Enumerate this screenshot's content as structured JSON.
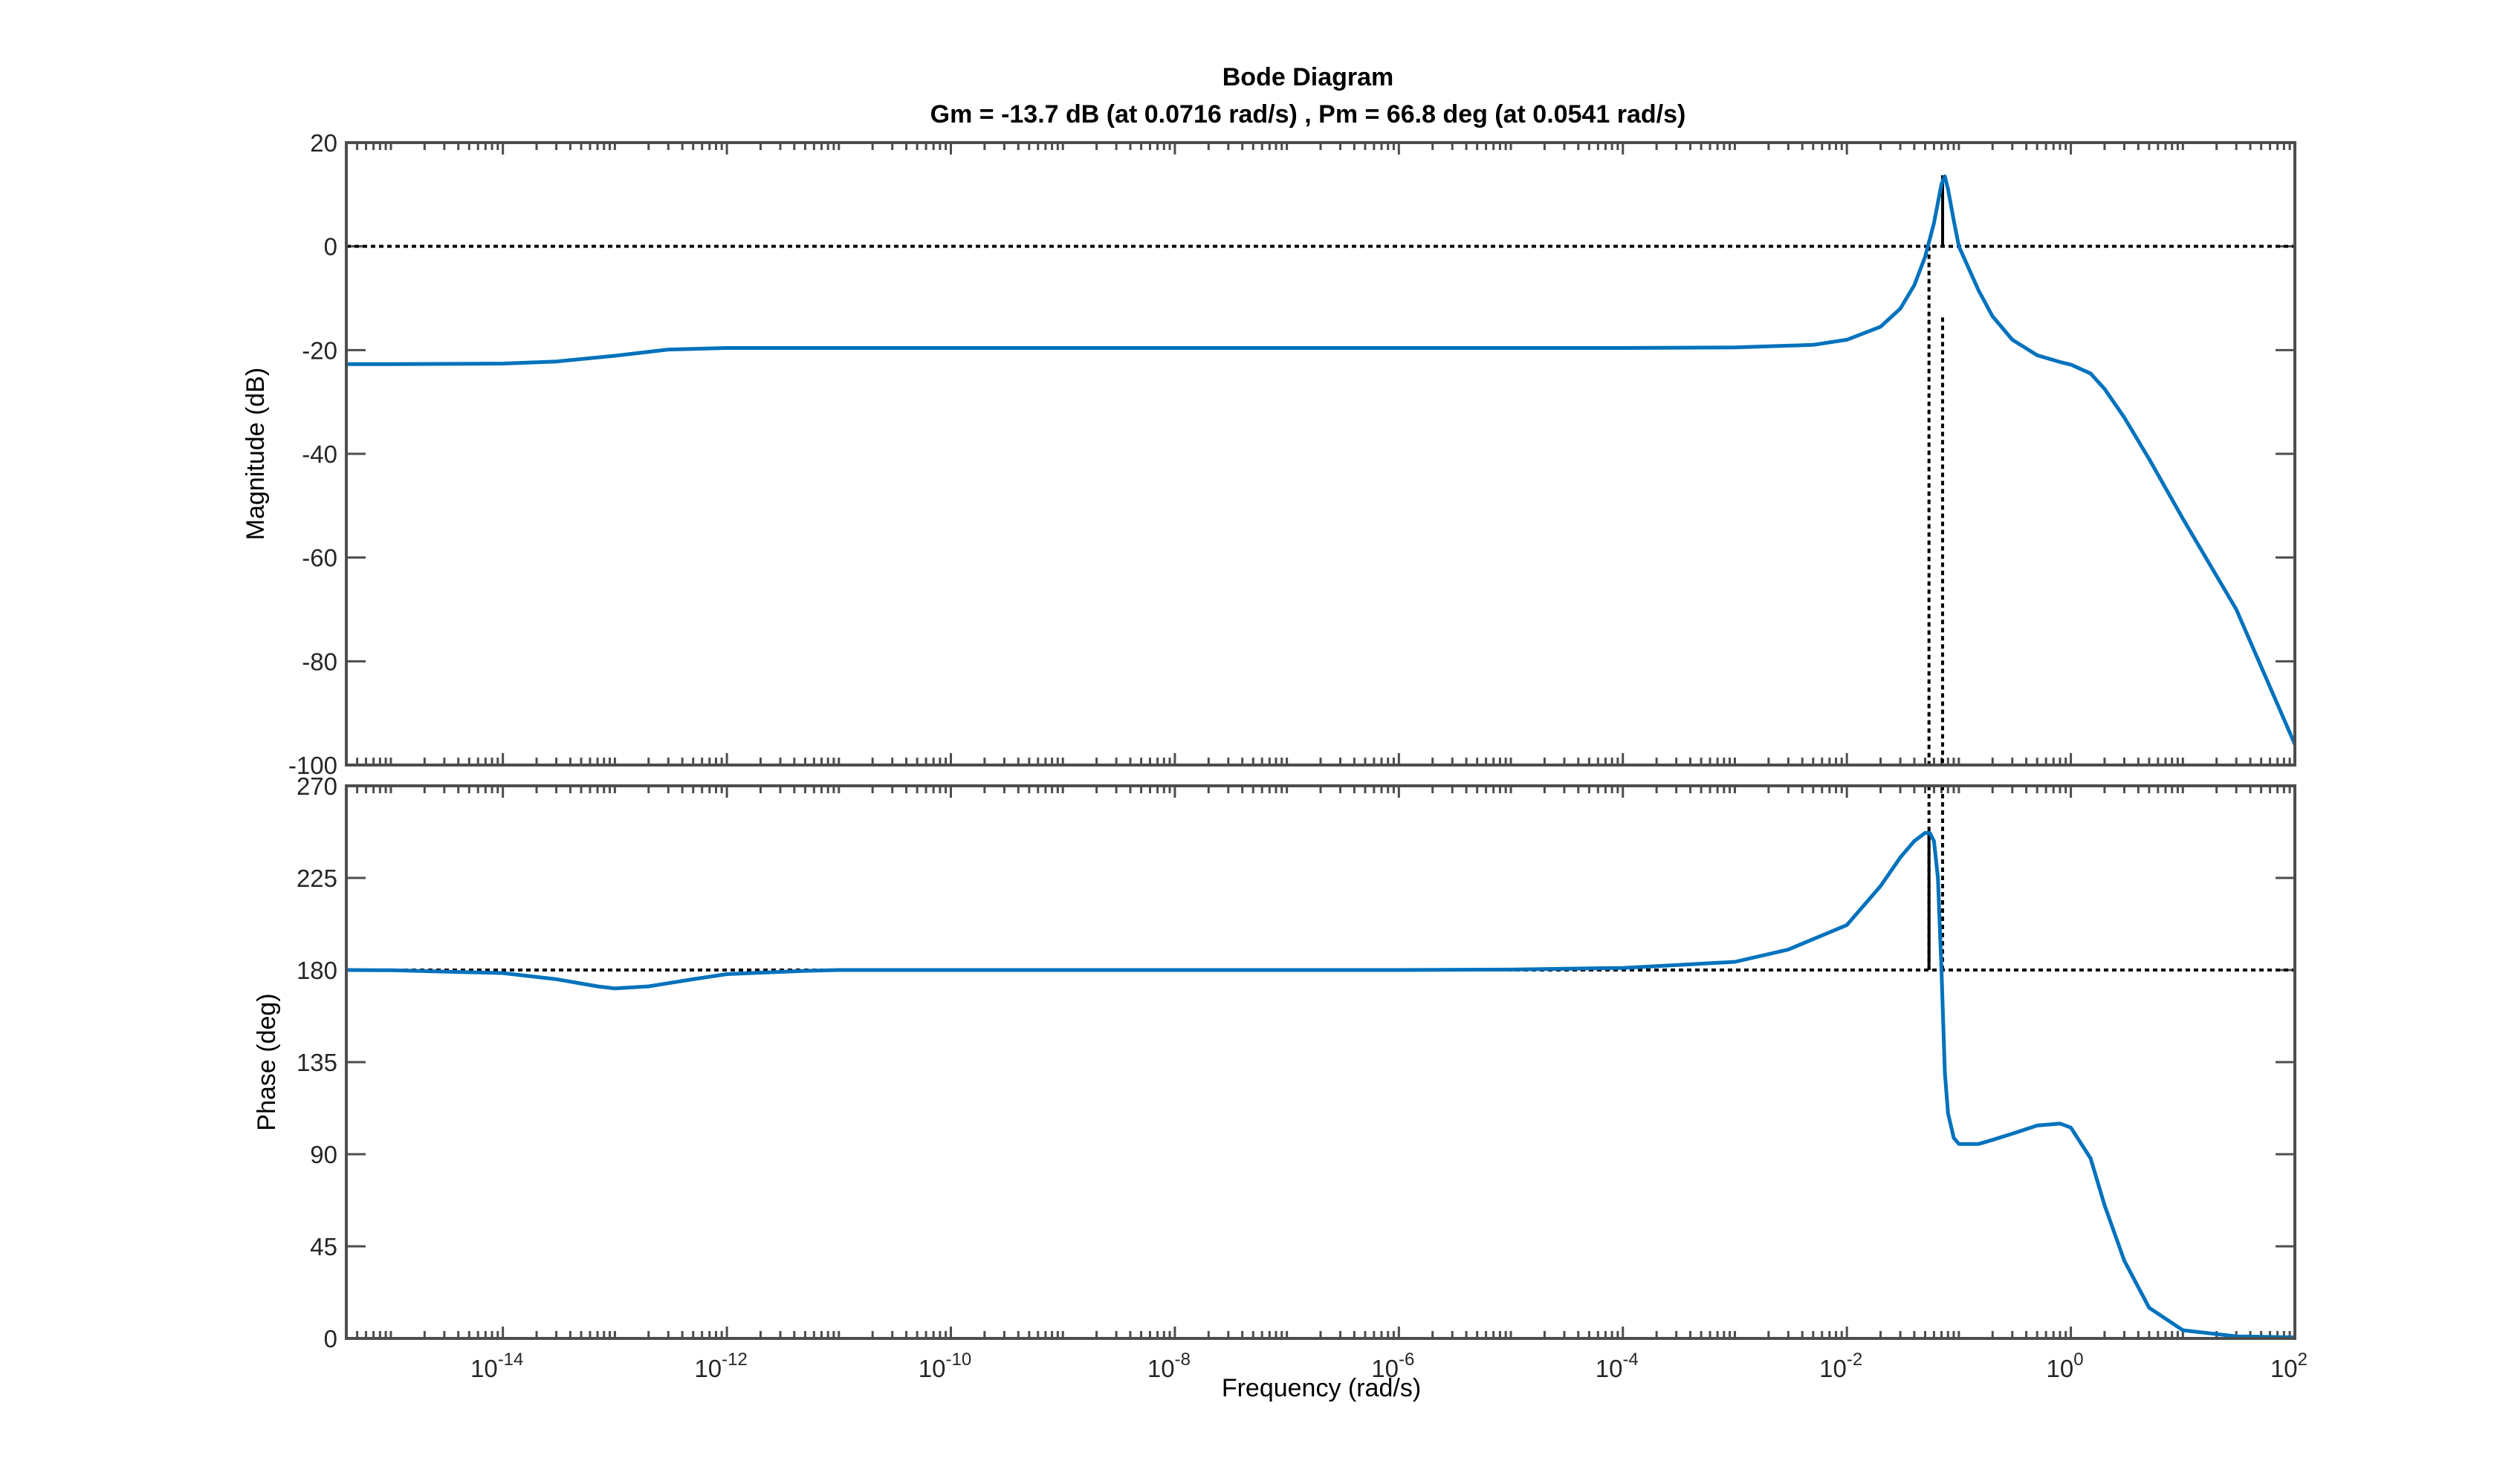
{
  "figure": {
    "title": "Bode Diagram",
    "subtitle": "Gm = -13.7 dB (at 0.0716 rad/s) ,  Pm = 66.8 deg (at 0.0541 rad/s)",
    "xlabel": "Frequency  (rad/s)",
    "colors": {
      "series": "#0072BD",
      "axes": "#4d4d4d",
      "background": "#ffffff",
      "reference_line": "#000000"
    }
  },
  "chart_data": [
    {
      "type": "line",
      "name": "magnitude",
      "ylabel": "Magnitude (dB)",
      "xscale": "log",
      "xlim": [
        4e-16,
        100
      ],
      "ylim": [
        -100,
        20
      ],
      "yticks": [
        20,
        0,
        -20,
        -40,
        -60,
        -80,
        -100
      ],
      "xticks": [
        {
          "base": "10",
          "exp": "-14"
        },
        {
          "base": "10",
          "exp": "-12"
        },
        {
          "base": "10",
          "exp": "-10"
        },
        {
          "base": "10",
          "exp": "-8"
        },
        {
          "base": "10",
          "exp": "-6"
        },
        {
          "base": "10",
          "exp": "-4"
        },
        {
          "base": "10",
          "exp": "-2"
        },
        {
          "base": "10",
          "exp": "0"
        },
        {
          "base": "10",
          "exp": "2"
        }
      ],
      "grid": false,
      "reference_line": 0,
      "x": [
        4e-16,
        1e-15,
        1e-14,
        3e-14,
        1e-13,
        3e-13,
        1e-12,
        1e-10,
        1e-08,
        1e-06,
        0.0001,
        0.001,
        0.005,
        0.01,
        0.02,
        0.03,
        0.04,
        0.05,
        0.06,
        0.07,
        0.075,
        0.08,
        0.09,
        0.1,
        0.15,
        0.2,
        0.3,
        0.5,
        0.8,
        1,
        1.5,
        2,
        3,
        5,
        10,
        30,
        100
      ],
      "y": [
        -22.7,
        -22.7,
        -22.6,
        -22.2,
        -21.1,
        -19.9,
        -19.6,
        -19.6,
        -19.6,
        -19.6,
        -19.6,
        -19.5,
        -19.0,
        -18.0,
        -15.5,
        -12.0,
        -7.5,
        -2.0,
        4.5,
        12.0,
        13.5,
        11.0,
        5.0,
        0.0,
        -8.5,
        -13.5,
        -18.0,
        -21.0,
        -22.3,
        -22.8,
        -24.5,
        -27.5,
        -33.0,
        -41.0,
        -52.5,
        -70.0,
        -96.0
      ],
      "gain_margin": {
        "frequency": 0.0716,
        "value": -13.7
      },
      "crossover_frequency": 0.0541
    },
    {
      "type": "line",
      "name": "phase",
      "ylabel": "Phase (deg)",
      "xscale": "log",
      "xlim": [
        4e-16,
        100
      ],
      "ylim": [
        0,
        270
      ],
      "yticks": [
        270,
        225,
        180,
        135,
        90,
        45,
        0
      ],
      "xticks": [
        {
          "base": "10",
          "exp": "-14"
        },
        {
          "base": "10",
          "exp": "-12"
        },
        {
          "base": "10",
          "exp": "-10"
        },
        {
          "base": "10",
          "exp": "-8"
        },
        {
          "base": "10",
          "exp": "-6"
        },
        {
          "base": "10",
          "exp": "-4"
        },
        {
          "base": "10",
          "exp": "-2"
        },
        {
          "base": "10",
          "exp": "0"
        },
        {
          "base": "10",
          "exp": "2"
        }
      ],
      "grid": false,
      "reference_line": 180,
      "x": [
        4e-16,
        1e-15,
        1e-14,
        3e-14,
        7e-14,
        1e-13,
        2e-13,
        5e-13,
        1e-12,
        5e-12,
        1e-11,
        1e-10,
        1e-08,
        1e-06,
        1e-05,
        0.0001,
        0.001,
        0.003,
        0.01,
        0.02,
        0.03,
        0.04,
        0.05,
        0.055,
        0.06,
        0.065,
        0.07,
        0.075,
        0.08,
        0.09,
        0.1,
        0.15,
        0.2,
        0.3,
        0.5,
        0.8,
        1,
        1.5,
        2,
        3,
        5,
        10,
        30,
        100
      ],
      "y": [
        180,
        179.9,
        178.5,
        175.5,
        172,
        171,
        172,
        175.5,
        178,
        179.6,
        180,
        180,
        180,
        180,
        180.2,
        181,
        184,
        190,
        202,
        221,
        235,
        243,
        247,
        247,
        243,
        225,
        180,
        130,
        110,
        98,
        95,
        95,
        97,
        100,
        104,
        105,
        103,
        88,
        65,
        38,
        15,
        4,
        1,
        0.5
      ],
      "phase_margin": {
        "frequency": 0.0541,
        "value": 66.8
      }
    }
  ]
}
